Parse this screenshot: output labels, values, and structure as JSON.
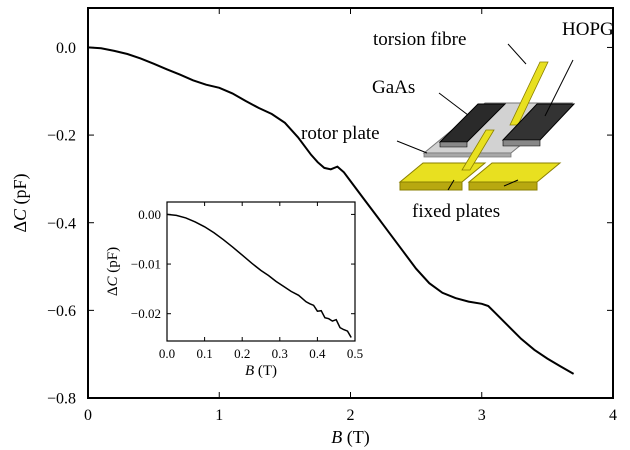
{
  "chart_data": [
    {
      "type": "line",
      "xlabel_sym": "B",
      "xlabel_unit": " (T)",
      "ylabel_sym": "C",
      "ylabel_prefix": "Δ",
      "ylabel_unit": " (pF)",
      "xlim": [
        0,
        4
      ],
      "ylim": [
        -0.8,
        0.09
      ],
      "x_ticks": [
        0,
        1,
        2,
        3,
        4
      ],
      "x_tick_labels": [
        "0",
        "1",
        "2",
        "3",
        "4"
      ],
      "y_ticks": [
        0.0,
        -0.2,
        -0.4,
        -0.6,
        -0.8
      ],
      "y_tick_labels": [
        "0.0",
        "−0.2",
        "−0.4",
        "−0.6",
        "−0.8"
      ],
      "series": [
        {
          "x": [
            0,
            0.1,
            0.2,
            0.3,
            0.4,
            0.5,
            0.6,
            0.7,
            0.8,
            0.9,
            1.0,
            1.1,
            1.2,
            1.3,
            1.4,
            1.5,
            1.6,
            1.7,
            1.75,
            1.8,
            1.85,
            1.9,
            1.95,
            2.0,
            2.1,
            2.2,
            2.3,
            2.4,
            2.5,
            2.6,
            2.7,
            2.8,
            2.9,
            3.0,
            3.05,
            3.1,
            3.2,
            3.3,
            3.4,
            3.5,
            3.6,
            3.7
          ],
          "y": [
            0.0,
            -0.002,
            -0.008,
            -0.015,
            -0.025,
            -0.037,
            -0.05,
            -0.062,
            -0.075,
            -0.085,
            -0.092,
            -0.105,
            -0.122,
            -0.138,
            -0.152,
            -0.172,
            -0.205,
            -0.245,
            -0.262,
            -0.275,
            -0.278,
            -0.272,
            -0.285,
            -0.305,
            -0.345,
            -0.385,
            -0.425,
            -0.465,
            -0.505,
            -0.538,
            -0.56,
            -0.572,
            -0.58,
            -0.585,
            -0.59,
            -0.605,
            -0.635,
            -0.665,
            -0.69,
            -0.71,
            -0.728,
            -0.745
          ]
        }
      ]
    },
    {
      "type": "line",
      "xlabel_sym": "B",
      "xlabel_unit": " (T)",
      "ylabel_sym": "C",
      "ylabel_prefix": "Δ",
      "ylabel_unit": " (pF)",
      "xlim": [
        0,
        0.5
      ],
      "ylim": [
        -0.0255,
        0.0025
      ],
      "x_ticks": [
        0.0,
        0.1,
        0.2,
        0.3,
        0.4,
        0.5
      ],
      "x_tick_labels": [
        "0.0",
        "0.1",
        "0.2",
        "0.3",
        "0.4",
        "0.5"
      ],
      "y_ticks": [
        0.0,
        -0.01,
        -0.02
      ],
      "y_tick_labels": [
        "0.00",
        "−0.01",
        "−0.02"
      ],
      "series": [
        {
          "x": [
            0,
            0.025,
            0.05,
            0.075,
            0.1,
            0.125,
            0.15,
            0.175,
            0.2,
            0.225,
            0.25,
            0.27,
            0.29,
            0.31,
            0.33,
            0.35,
            0.37,
            0.38,
            0.39,
            0.4,
            0.41,
            0.42,
            0.43,
            0.44,
            0.45,
            0.46,
            0.47,
            0.48,
            0.49
          ],
          "y": [
            0.0,
            -0.0002,
            -0.0007,
            -0.0015,
            -0.0025,
            -0.0037,
            -0.0051,
            -0.0066,
            -0.0082,
            -0.0098,
            -0.0113,
            -0.0123,
            -0.0135,
            -0.0145,
            -0.0155,
            -0.0163,
            -0.0176,
            -0.018,
            -0.0183,
            -0.0195,
            -0.0194,
            -0.0208,
            -0.021,
            -0.0215,
            -0.0212,
            -0.0228,
            -0.0232,
            -0.0235,
            -0.0248
          ]
        }
      ]
    }
  ],
  "annotations": {
    "torsion": "torsion fibre",
    "hopg": "HOPG",
    "gaas": "GaAs",
    "rotor": "rotor plate",
    "fixed": "fixed plates"
  },
  "colors": {
    "plate_yellow": "#e8e020",
    "plate_yellow_dark": "#b8a810",
    "rotor_grey": "#c8c8c8",
    "sample_dark": "#2a2a2a"
  }
}
